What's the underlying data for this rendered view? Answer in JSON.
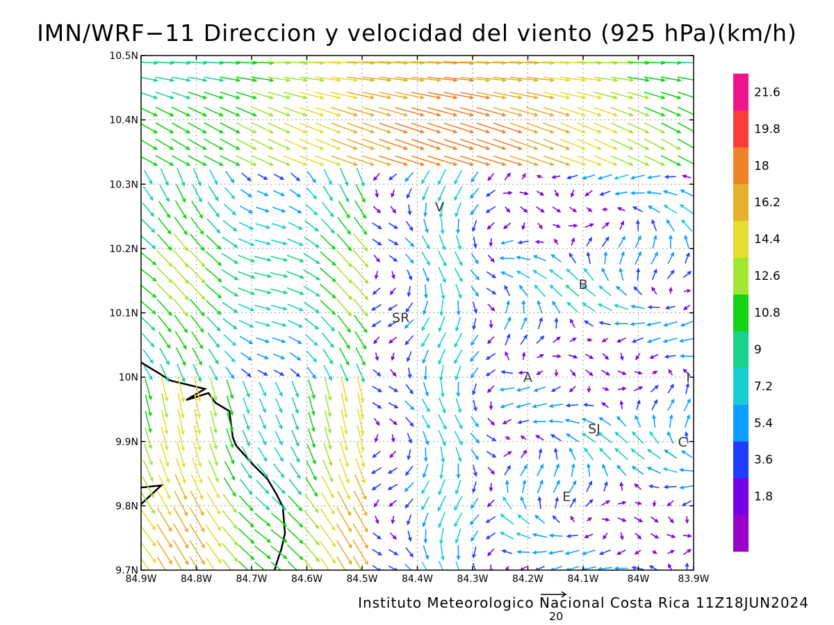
{
  "title": "IMN/WRF−11 Direccion y velocidad del viento (925 hPa)(km/h)",
  "credit": "Instituto Meteorologico Nacional Costa Rica  11Z18JUN2024",
  "reference_vector_label": "20",
  "map": {
    "lon_range": [
      -84.9,
      -83.9
    ],
    "lat_range": [
      9.7,
      10.5
    ],
    "lon_ticks": [
      "84.9W",
      "84.8W",
      "84.7W",
      "84.6W",
      "84.5W",
      "84.4W",
      "84.3W",
      "84.2W",
      "84.1W",
      "84W",
      "83.9W"
    ],
    "lat_ticks": [
      "9.7N",
      "9.8N",
      "9.9N",
      "10N",
      "10.1N",
      "10.2N",
      "10.3N",
      "10.4N",
      "10.5N"
    ],
    "grid": true,
    "city_labels": [
      {
        "text": "V",
        "lon": -84.36,
        "lat": 10.265
      },
      {
        "text": "SR",
        "lon": -84.43,
        "lat": 10.093
      },
      {
        "text": "B",
        "lon": -84.1,
        "lat": 10.145
      },
      {
        "text": "A",
        "lon": -84.2,
        "lat": 10.0
      },
      {
        "text": "SJ",
        "lon": -84.08,
        "lat": 9.92
      },
      {
        "text": "C",
        "lon": -83.92,
        "lat": 9.9
      },
      {
        "text": "E",
        "lon": -84.13,
        "lat": 9.815
      },
      {
        "text": "I",
        "lon": -83.91,
        "lat": 10.0
      }
    ]
  },
  "colorbar": {
    "labels": [
      "21.6",
      "19.8",
      "18",
      "16.2",
      "14.4",
      "12.6",
      "10.8",
      "9",
      "7.2",
      "5.4",
      "3.6",
      "1.8"
    ],
    "colors": [
      "#9a00c8",
      "#7800e6",
      "#1f3cff",
      "#0aa0ff",
      "#19cdd2",
      "#19d287",
      "#14d214",
      "#a0e632",
      "#e6dc32",
      "#e6af2d",
      "#f08228",
      "#fa3c3c",
      "#f0148c"
    ]
  }
}
